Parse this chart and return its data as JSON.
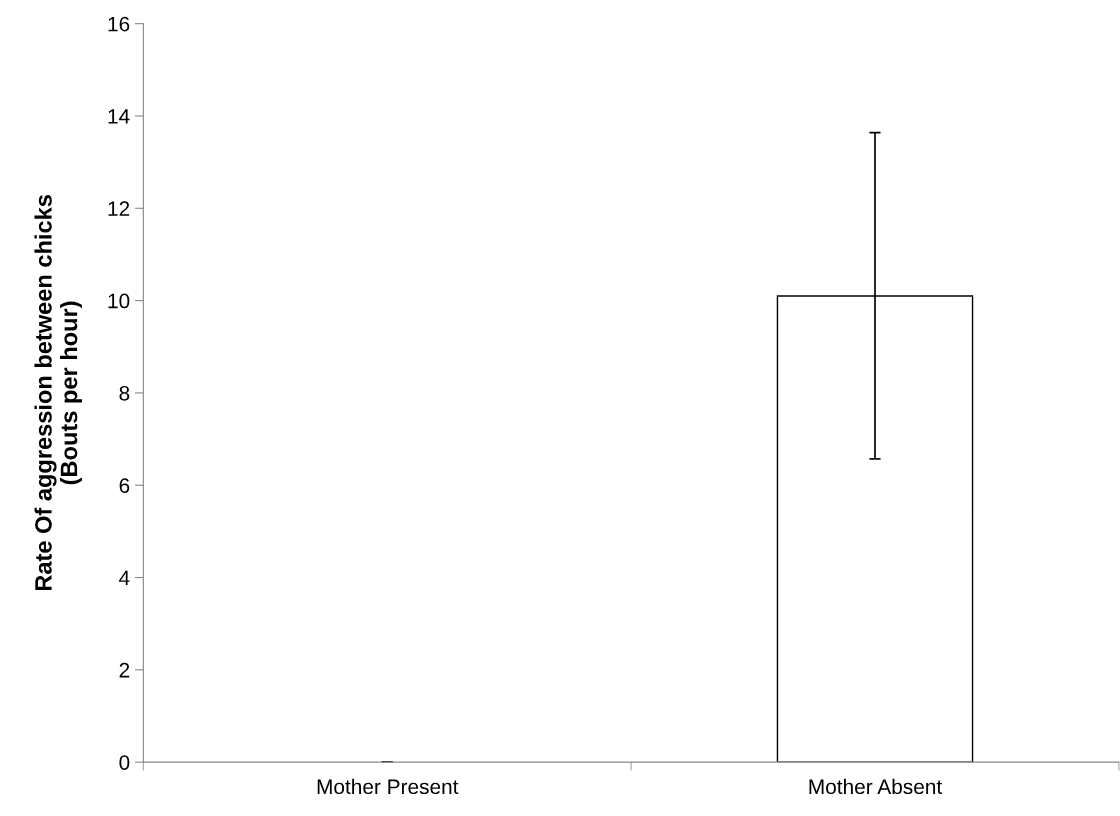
{
  "chart_data": {
    "type": "bar",
    "ylabel": "Rate Of aggression between chicks\n(Bouts per hour)",
    "categories": [
      "Mother Present",
      "Mother Absent"
    ],
    "values": [
      0,
      10.1
    ],
    "errors": [
      0,
      [
        6.57,
        13.64
      ]
    ],
    "color": "#ffffff",
    "ylim": [
      0,
      16
    ],
    "yticks": [
      0,
      2,
      4,
      6,
      8,
      10,
      12,
      14,
      16
    ],
    "grid": false,
    "legend": false
  }
}
